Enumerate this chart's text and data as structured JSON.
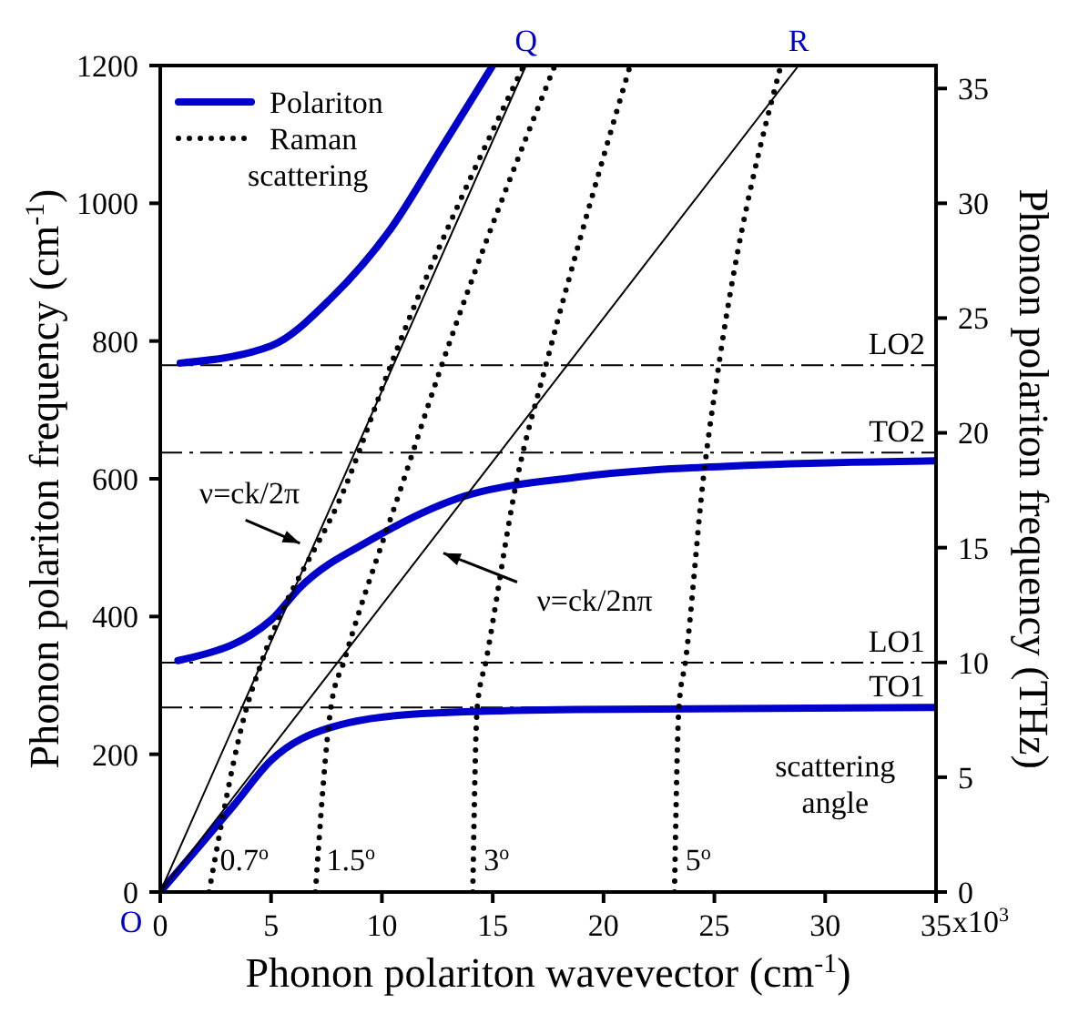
{
  "chart_data": {
    "type": "line",
    "xlabel": "Phonon polariton wavevector (cm$^{-1}$)",
    "ylabel": "Phonon polariton frequency (cm$^{-1}$)",
    "y2label": "Phonon polariton frequency (THz)",
    "xlim": [
      0,
      35
    ],
    "xticks": [
      0,
      5,
      10,
      15,
      20,
      25,
      30,
      35
    ],
    "ylim": [
      0,
      1200
    ],
    "yticks": [
      0,
      200,
      400,
      600,
      800,
      1000,
      1200
    ],
    "y2lim": [
      0,
      36
    ],
    "y2ticks": [
      0,
      5,
      10,
      15,
      20,
      25,
      30,
      35
    ],
    "legend": "top left",
    "grid": false,
    "series": [
      {
        "name": "Polariton",
        "color": "#0000cc",
        "line_style": "solid",
        "x": [
          0.9,
          5.0,
          7.7,
          10.4,
          12.7,
          15.0
        ],
        "values": [
          768,
          793,
          862,
          963,
          1081,
          1200
        ]
      },
      {
        "color": "#0000cc",
        "line_style": "solid",
        "x": [
          0.8,
          5.0,
          6.3,
          9.6,
          13.2,
          18.7,
          27.0,
          35
        ],
        "values": [
          336,
          395,
          442,
          513,
          569,
          602,
          620,
          626
        ]
      },
      {
        "color": "#0000cc",
        "line_style": "solid",
        "x": [
          0,
          3.3,
          5.0,
          7.7,
          11.8,
          18.7,
          35
        ],
        "values": [
          0,
          125,
          191,
          239,
          259,
          265,
          268
        ]
      },
      {
        "name": "Raman scattering",
        "color": "#000000",
        "line_style": "dotted",
        "x": [
          2.2,
          3.9,
          4.6,
          8.5,
          10.4,
          16.4
        ],
        "values": [
          0,
          268,
          336,
          600,
          765,
          1200
        ]
      },
      {
        "color": "#000000",
        "line_style": "dotted",
        "x": [
          7.0,
          7.7,
          8.3,
          11.0,
          12.7,
          17.8
        ],
        "values": [
          0,
          268,
          336,
          600,
          765,
          1200
        ]
      },
      {
        "color": "#000000",
        "line_style": "dotted",
        "x": [
          14.1,
          14.3,
          14.7,
          16.1,
          17.4,
          21.2
        ],
        "values": [
          0,
          268,
          336,
          600,
          765,
          1200
        ]
      },
      {
        "color": "#000000",
        "line_style": "dotted",
        "x": [
          23.2,
          23.4,
          23.7,
          24.5,
          25.2,
          28.0
        ],
        "values": [
          0,
          268,
          336,
          600,
          765,
          1200
        ]
      },
      {
        "color": "#000000",
        "line_style": "solid",
        "x": [
          0,
          16.5
        ],
        "values": [
          0,
          1200
        ]
      },
      {
        "color": "#000000",
        "line_style": "solid",
        "x": [
          0,
          28.8
        ],
        "values": [
          0,
          1200
        ]
      }
    ],
    "ref_lines": [
      {
        "axis": "y",
        "value": 765,
        "label": "LO2",
        "color": "#000000",
        "line_style": "dashed"
      },
      {
        "axis": "y",
        "value": 638,
        "label": "TO2",
        "color": "#000000",
        "line_style": "dashed"
      },
      {
        "axis": "y",
        "value": 333,
        "label": "LO1",
        "color": "#000000",
        "line_style": "dashed"
      },
      {
        "axis": "y",
        "value": 268,
        "label": "TO1",
        "color": "#000000",
        "line_style": "dashed"
      }
    ],
    "annotations": [
      {
        "text": "Q",
        "x": 16.5,
        "y": 1200
      },
      {
        "text": "R",
        "x": 28.8,
        "y": 1200
      },
      {
        "text": "O",
        "x": 0,
        "y": 0
      },
      {
        "text": "0.7$^{o}$",
        "x": 2.2,
        "y": 0
      },
      {
        "text": "1.5$^{o}$",
        "x": 7.0,
        "y": 0
      },
      {
        "text": "3$^{o}$",
        "x": 14.1,
        "y": 0
      },
      {
        "text": "5$^{o}$",
        "x": 23.2,
        "y": 0
      },
      "ν=ck/2π",
      "ν=ck/2nπ",
      "scattering angle",
      "x10$^{3}$"
    ]
  }
}
